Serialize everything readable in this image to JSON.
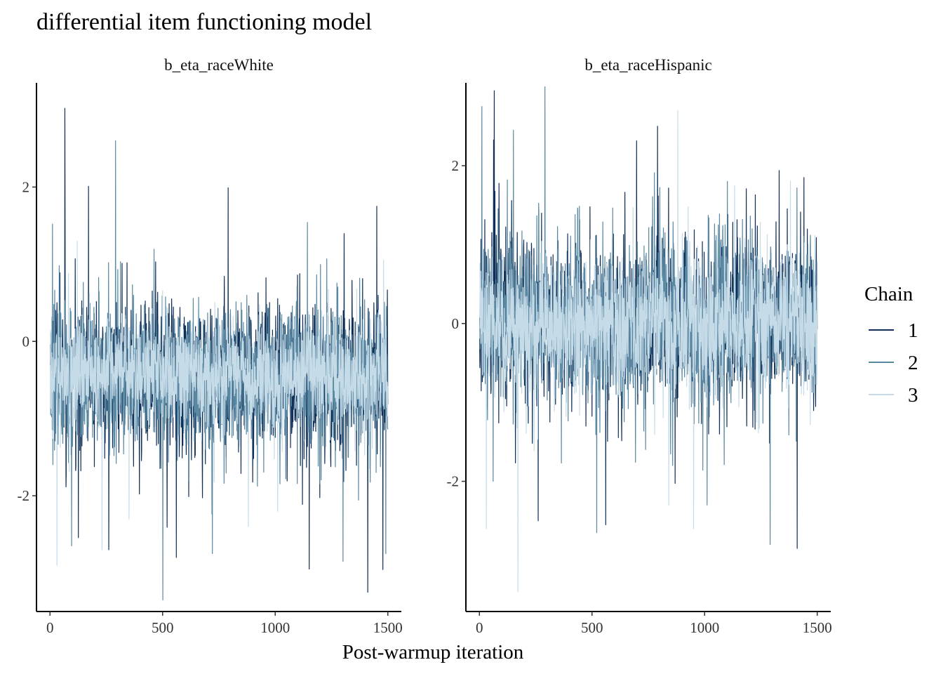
{
  "chart_data": {
    "type": "line",
    "title": "differential item functioning model",
    "xlabel": "Post-warmup iteration",
    "ylabel": "",
    "legend": {
      "title": "Chain",
      "position": "right",
      "entries": [
        {
          "name": "1",
          "color": "#0f2f57"
        },
        {
          "name": "2",
          "color": "#5a88a2"
        },
        {
          "name": "3",
          "color": "#c6dbe8"
        }
      ]
    },
    "grid": false,
    "iterations": 1500,
    "panels": [
      {
        "strip": "b_eta_raceWhite",
        "xlim": [
          -60,
          1560
        ],
        "ylim": [
          -3.5,
          3.35
        ],
        "xticks": [
          0,
          500,
          1000,
          1500
        ],
        "xtick_labels": [
          "0",
          "500",
          "1000",
          "1500"
        ],
        "yticks": [
          -2,
          0,
          2
        ],
        "ytick_labels": [
          "-2",
          "0",
          "2"
        ],
        "chain_center": [
          -0.45,
          -0.45,
          -0.42
        ],
        "chain_sd": [
          0.5,
          0.5,
          0.35
        ],
        "extremes": [
          [
            [
              65,
              3.02
            ],
            [
              170,
              2.01
            ],
            [
              790,
              1.99
            ],
            [
              1150,
              -2.95
            ],
            [
              1410,
              -3.25
            ],
            [
              1450,
              1.75
            ],
            [
              260,
              -2.7
            ],
            [
              560,
              -2.8
            ]
          ],
          [
            [
              290,
              2.6
            ],
            [
              500,
              -3.35
            ],
            [
              10,
              1.52
            ],
            [
              40,
              0.98
            ],
            [
              1300,
              -2.85
            ],
            [
              1490,
              -2.75
            ],
            [
              95,
              -2.65
            ],
            [
              720,
              -2.75
            ]
          ],
          [
            [
              30,
              -2.9
            ],
            [
              350,
              -2.3
            ],
            [
              880,
              -2.4
            ],
            [
              1010,
              -2.2
            ],
            [
              120,
              1.3
            ],
            [
              1480,
              1.05
            ],
            [
              230,
              -2.7
            ]
          ]
        ]
      },
      {
        "strip": "b_eta_raceHispanic",
        "xlim": [
          -60,
          1560
        ],
        "ylim": [
          -3.65,
          3.05
        ],
        "xticks": [
          0,
          500,
          1000,
          1500
        ],
        "xtick_labels": [
          "0",
          "500",
          "1000",
          "1500"
        ],
        "yticks": [
          -2,
          0,
          2
        ],
        "ytick_labels": [
          "-2",
          "0",
          "2"
        ],
        "chain_center": [
          0.02,
          0.0,
          0.0
        ],
        "chain_sd": [
          0.55,
          0.55,
          0.45
        ],
        "extremes": [
          [
            [
              65,
              2.95
            ],
            [
              790,
              2.5
            ],
            [
              1410,
              -2.85
            ],
            [
              1440,
              1.85
            ],
            [
              260,
              -2.5
            ],
            [
              560,
              -2.55
            ]
          ],
          [
            [
              290,
              3.0
            ],
            [
              10,
              2.75
            ],
            [
              520,
              -2.65
            ],
            [
              1290,
              -2.8
            ],
            [
              60,
              -2.0
            ],
            [
              1010,
              -2.3
            ],
            [
              1100,
              1.8
            ]
          ],
          [
            [
              170,
              -3.4
            ],
            [
              880,
              2.7
            ],
            [
              30,
              -2.6
            ],
            [
              950,
              -2.6
            ],
            [
              1380,
              1.8
            ],
            [
              840,
              -2.3
            ]
          ]
        ]
      }
    ]
  }
}
